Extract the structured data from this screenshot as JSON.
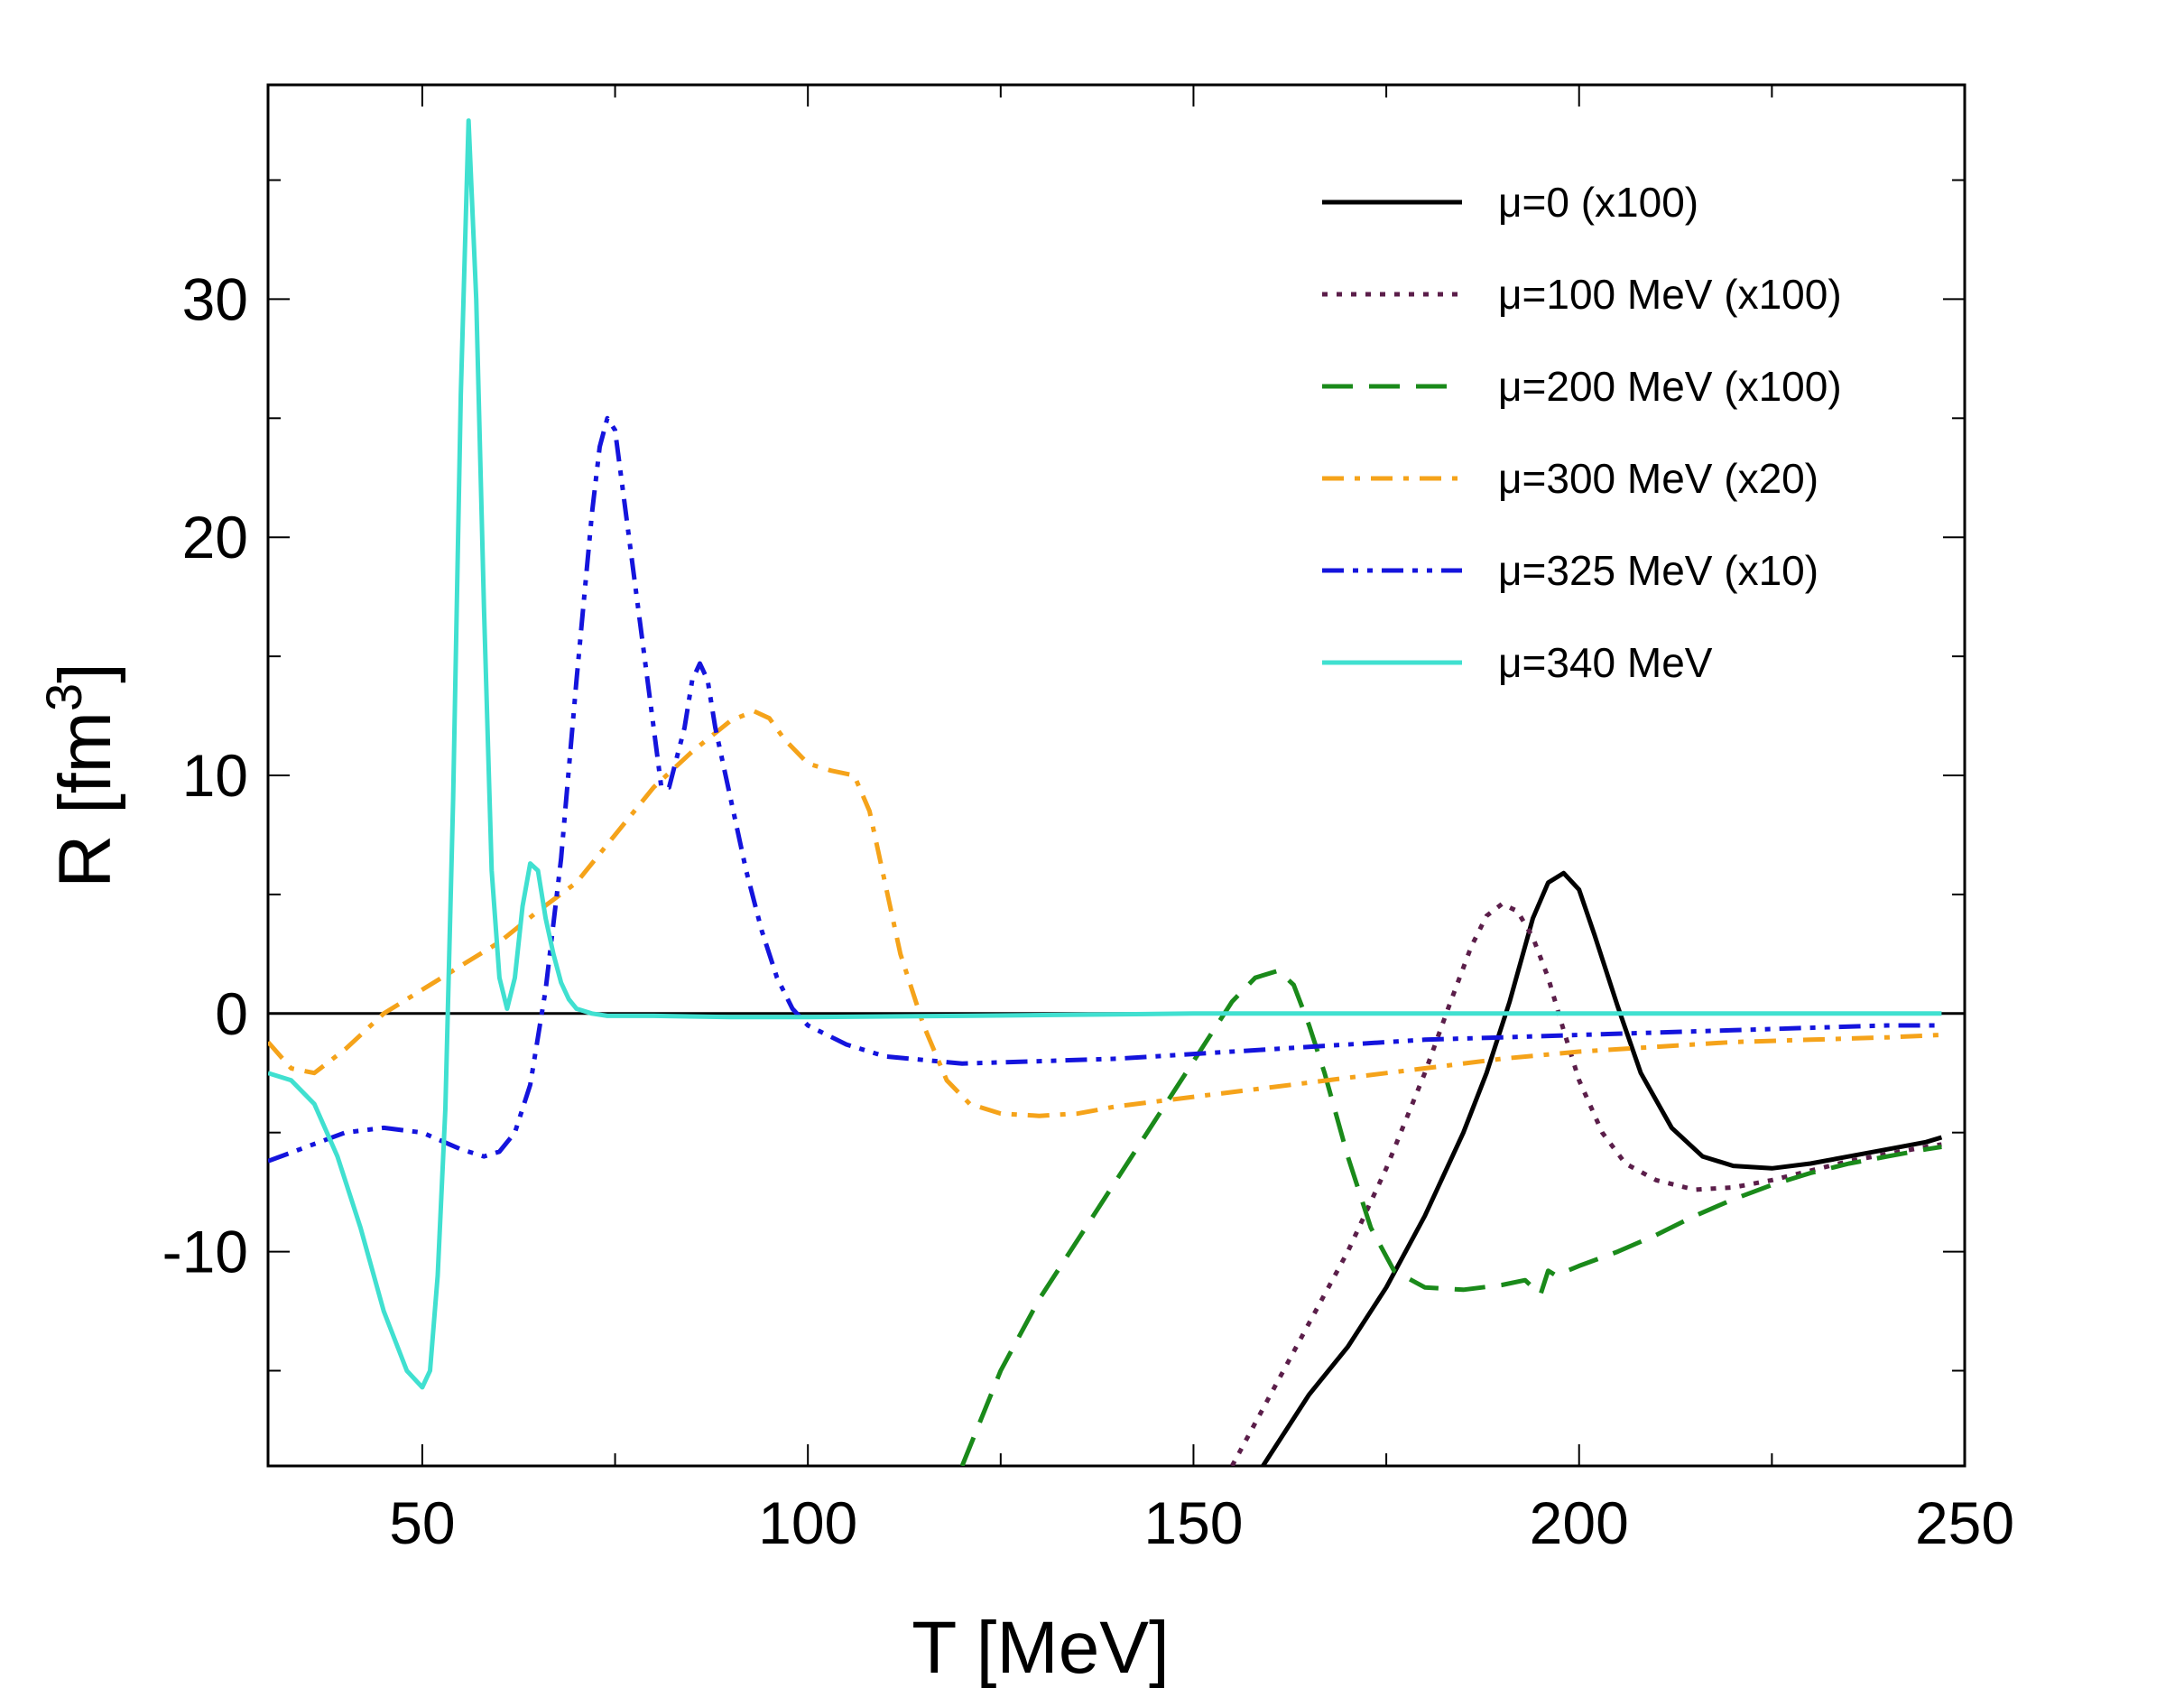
{
  "chart_data": {
    "type": "line",
    "xlabel": "T [MeV]",
    "ylabel": "R [fm",
    "ylabel_sup": "3",
    "ylabel_close": "]",
    "xlim": [
      30,
      250
    ],
    "ylim": [
      -19,
      39
    ],
    "xticks": [
      50,
      100,
      150,
      200,
      250
    ],
    "yticks": [
      -10,
      0,
      10,
      20,
      30
    ],
    "legend_position": "top-right",
    "series": [
      {
        "name": "μ=0 (x100)",
        "color": "#000000",
        "style": "solid",
        "x": [
          159,
          165,
          170,
          175,
          180,
          185,
          188,
          191,
          194,
          196,
          198,
          200,
          202,
          205,
          208,
          212,
          216,
          220,
          225,
          230,
          235,
          240,
          245,
          247
        ],
        "y": [
          -19,
          -16,
          -14,
          -11.5,
          -8.5,
          -5,
          -2.5,
          0.5,
          4,
          5.5,
          5.9,
          5.2,
          3.3,
          0.3,
          -2.5,
          -4.8,
          -6,
          -6.4,
          -6.5,
          -6.3,
          -6,
          -5.7,
          -5.4,
          -5.2
        ]
      },
      {
        "name": "μ=100 MeV (x100)",
        "color": "#5b1e4a",
        "style": "dotted",
        "x": [
          155,
          160,
          165,
          170,
          175,
          180,
          183,
          186,
          188,
          190,
          192,
          194,
          196,
          198,
          200,
          203,
          206,
          210,
          215,
          220,
          225,
          230,
          235,
          240,
          245,
          247
        ],
        "y": [
          -19,
          -16,
          -13,
          -10,
          -6.5,
          -2.5,
          0.2,
          2.8,
          4.1,
          4.6,
          4.3,
          3.2,
          1.5,
          -0.7,
          -2.8,
          -5,
          -6.3,
          -7,
          -7.4,
          -7.3,
          -7,
          -6.6,
          -6.2,
          -5.9,
          -5.6,
          -5.5
        ]
      },
      {
        "name": "μ=200 MeV (x100)",
        "color": "#1a8a1a",
        "style": "dashed",
        "x": [
          120,
          125,
          130,
          135,
          140,
          145,
          150,
          155,
          158,
          161,
          163,
          165,
          167,
          170,
          173,
          176,
          180,
          185,
          190,
          193,
          195,
          196,
          197,
          200,
          205,
          210,
          215,
          220,
          225,
          230,
          235,
          240,
          245,
          247
        ],
        "y": [
          -19,
          -15,
          -12,
          -9.5,
          -7,
          -4.5,
          -2,
          0.5,
          1.5,
          1.8,
          1.2,
          -0.5,
          -2.5,
          -6,
          -9,
          -10.8,
          -11.5,
          -11.6,
          -11.4,
          -11.2,
          -11.8,
          -10.8,
          -11,
          -10.6,
          -10,
          -9.3,
          -8.5,
          -7.8,
          -7.2,
          -6.7,
          -6.3,
          -6,
          -5.7,
          -5.6
        ]
      },
      {
        "name": "μ=300 MeV (x20)",
        "color": "#f5a31a",
        "style": "dashdot",
        "x": [
          30,
          33,
          36,
          40,
          45,
          50,
          55,
          60,
          65,
          70,
          75,
          80,
          85,
          90,
          93,
          95,
          97,
          100,
          103,
          106,
          108,
          110,
          112,
          115,
          118,
          121,
          125,
          130,
          135,
          140,
          150,
          160,
          170,
          180,
          190,
          200,
          210,
          220,
          230,
          240,
          247
        ],
        "y": [
          -1.2,
          -2.3,
          -2.5,
          -1.5,
          0,
          1,
          2,
          3,
          4.3,
          5.5,
          7.5,
          9.5,
          11,
          12.3,
          12.7,
          12.4,
          11.5,
          10.5,
          10.2,
          10,
          8.5,
          5.5,
          2.5,
          -0.5,
          -2.8,
          -3.8,
          -4.2,
          -4.3,
          -4.2,
          -3.9,
          -3.5,
          -3.1,
          -2.7,
          -2.3,
          -1.9,
          -1.6,
          -1.4,
          -1.2,
          -1.1,
          -1,
          -0.9
        ]
      },
      {
        "name": "μ=325 MeV (x10)",
        "color": "#1414dd",
        "style": "dashdotdot",
        "x": [
          30,
          35,
          40,
          45,
          50,
          55,
          58,
          60,
          62,
          64,
          66,
          68,
          70,
          72,
          73,
          74,
          75,
          76,
          78,
          80,
          81,
          82,
          84,
          85,
          86,
          87,
          88,
          90,
          92,
          94,
          96,
          98,
          100,
          105,
          110,
          120,
          130,
          140,
          150,
          160,
          170,
          180,
          190,
          200,
          210,
          220,
          230,
          240,
          247
        ],
        "y": [
          -6.2,
          -5.6,
          -5,
          -4.8,
          -5,
          -5.7,
          -6,
          -5.8,
          -5,
          -3,
          1,
          6.5,
          14,
          21,
          23.8,
          25,
          24.5,
          22,
          17,
          12,
          9.5,
          9.5,
          12,
          14,
          14.7,
          14,
          12,
          9,
          6,
          3.5,
          1.5,
          0.2,
          -0.5,
          -1.3,
          -1.8,
          -2.1,
          -2,
          -1.9,
          -1.7,
          -1.5,
          -1.3,
          -1.1,
          -1,
          -0.9,
          -0.8,
          -0.7,
          -0.6,
          -0.5,
          -0.5
        ]
      },
      {
        "name": "μ=340 MeV",
        "color": "#40e0d0",
        "style": "solid",
        "x": [
          30,
          33,
          36,
          39,
          42,
          45,
          48,
          50,
          51,
          52,
          53,
          54,
          55,
          56,
          57,
          58,
          59,
          60,
          61,
          62,
          63,
          64,
          65,
          66,
          67,
          68,
          69,
          70,
          72,
          74,
          76,
          78,
          80,
          90,
          100,
          120,
          150,
          180,
          210,
          240,
          247
        ],
        "y": [
          -2.5,
          -2.8,
          -3.8,
          -6,
          -9,
          -12.5,
          -15,
          -15.7,
          -15,
          -11,
          -4,
          9,
          26,
          37.5,
          30,
          17,
          6,
          1.5,
          0.2,
          1.5,
          4.5,
          6.3,
          6,
          4,
          2.5,
          1.3,
          0.6,
          0.2,
          0,
          -0.1,
          -0.1,
          -0.1,
          -0.1,
          -0.15,
          -0.15,
          -0.1,
          0,
          0,
          0,
          0,
          0
        ]
      }
    ]
  }
}
